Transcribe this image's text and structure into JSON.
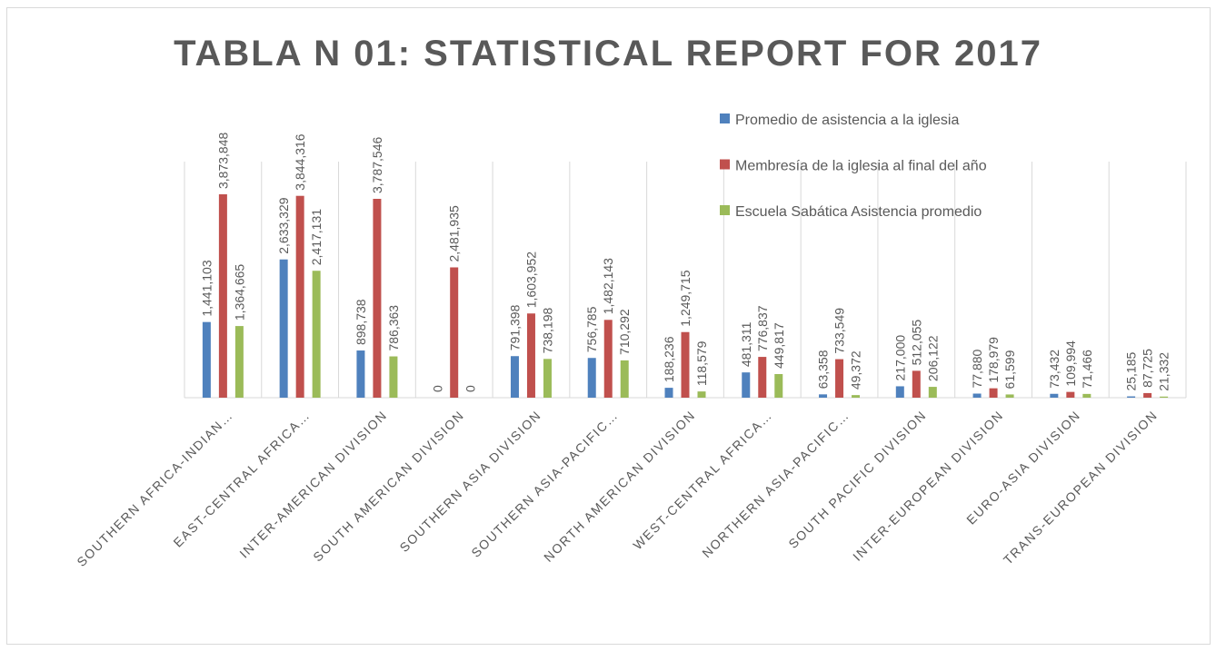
{
  "chart_data": {
    "type": "bar",
    "title": "TABLA N 01: STATISTICAL REPORT FOR 2017",
    "categories": [
      "SOUTHERN AFRICA-INDIAN…",
      "EAST-CENTRAL AFRICA…",
      "INTER-AMERICAN DIVISION",
      "SOUTH AMERICAN DIVISION",
      "SOUTHERN ASIA DIVISION",
      "SOUTHERN ASIA-PACIFIC…",
      "NORTH AMERICAN DIVISION",
      "WEST-CENTRAL AFRICA…",
      "NORTHERN ASIA-PACIFIC…",
      "SOUTH PACIFIC DIVISION",
      "INTER-EUROPEAN DIVISION",
      "EURO-ASIA DIVISION",
      "TRANS-EUROPEAN DIVISION"
    ],
    "series": [
      {
        "name": "Promedio de asistencia a la iglesia",
        "color": "#4f81bd",
        "values": [
          1441103,
          2633329,
          898738,
          0,
          791398,
          756785,
          188236,
          481311,
          63358,
          217000,
          77880,
          73432,
          25185
        ],
        "value_labels": [
          "1,441,103",
          "2,633,329",
          "898,738",
          "0",
          "791,398",
          "756,785",
          "188,236",
          "481,311",
          "63,358",
          "217,000",
          "77,880",
          "73,432",
          "25,185"
        ]
      },
      {
        "name": "Membresía de la iglesia al final del año",
        "color": "#c0504d",
        "values": [
          3873848,
          3844316,
          3787546,
          2481935,
          1603952,
          1482143,
          1249715,
          776837,
          733549,
          512055,
          178979,
          109994,
          87725
        ],
        "value_labels": [
          "3,873,848",
          "3,844,316",
          "3,787,546",
          "2,481,935",
          "1,603,952",
          "1,482,143",
          "1,249,715",
          "776,837",
          "733,549",
          "512,055",
          "178,979",
          "109,994",
          "87,725"
        ]
      },
      {
        "name": "Escuela Sabática Asistencia promedio",
        "color": "#9bbb59",
        "values": [
          1364665,
          2417131,
          786363,
          0,
          738198,
          710292,
          118579,
          449817,
          49372,
          206122,
          61599,
          71466,
          21332
        ],
        "value_labels": [
          "1,364,665",
          "2,417,131",
          "786,363",
          "0",
          "738,198",
          "710,292",
          "118,579",
          "449,817",
          "49,372",
          "206,122",
          "61,599",
          "71,466",
          "21,332"
        ]
      }
    ],
    "legend": "top-right"
  }
}
